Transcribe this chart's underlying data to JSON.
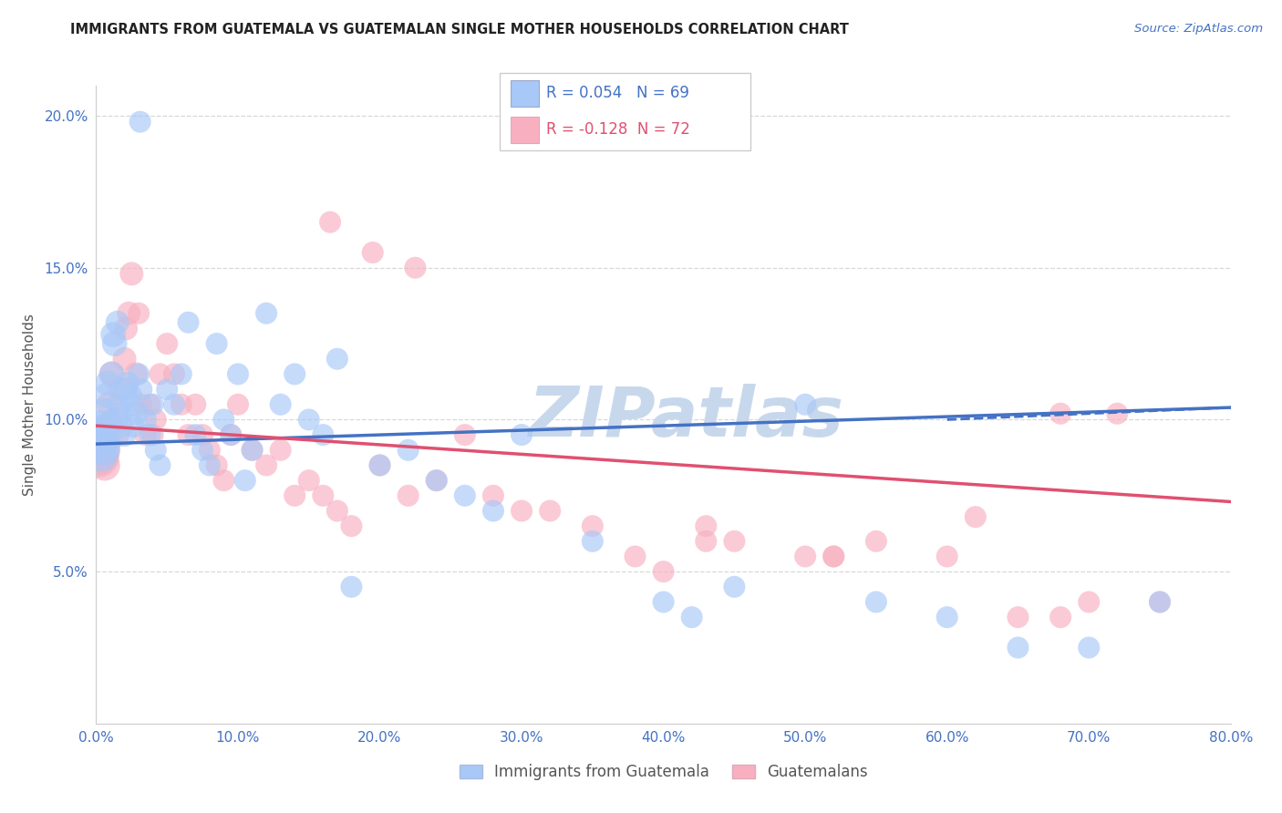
{
  "title": "IMMIGRANTS FROM GUATEMALA VS GUATEMALAN SINGLE MOTHER HOUSEHOLDS CORRELATION CHART",
  "source": "Source: ZipAtlas.com",
  "ylabel": "Single Mother Households",
  "series1_label": "Immigrants from Guatemala",
  "series2_label": "Guatemalans",
  "series1_R": "0.054",
  "series1_N": 69,
  "series2_R": "-0.128",
  "series2_N": 72,
  "series1_color": "#a8c8f8",
  "series2_color": "#f8b0c0",
  "series1_line_color": "#4472c4",
  "series2_line_color": "#e05070",
  "background_color": "#ffffff",
  "grid_color": "#d8d8d8",
  "title_color": "#222222",
  "axis_label_color": "#4472c4",
  "tick_color": "#4472c4",
  "xlim": [
    0,
    80
  ],
  "ylim": [
    0,
    21
  ],
  "yticks": [
    5,
    10,
    15,
    20
  ],
  "xticks": [
    0,
    10,
    20,
    30,
    40,
    50,
    60,
    70,
    80
  ],
  "watermark": "ZIPatlas",
  "watermark_color": "#c8d8ec",
  "watermark_fontsize": 55,
  "series1_x": [
    0.15,
    0.25,
    0.3,
    0.4,
    0.5,
    0.55,
    0.6,
    0.7,
    0.8,
    0.9,
    1.0,
    1.1,
    1.2,
    1.3,
    1.5,
    1.6,
    1.7,
    1.8,
    2.0,
    2.1,
    2.2,
    2.4,
    2.5,
    2.6,
    2.8,
    3.0,
    3.1,
    3.2,
    3.5,
    3.8,
    4.0,
    4.2,
    4.5,
    5.0,
    5.5,
    6.0,
    6.5,
    7.0,
    7.5,
    8.0,
    8.5,
    9.0,
    9.5,
    10.0,
    10.5,
    11.0,
    12.0,
    13.0,
    14.0,
    15.0,
    16.0,
    17.0,
    18.0,
    20.0,
    22.0,
    24.0,
    26.0,
    28.0,
    30.0,
    35.0,
    40.0,
    42.0,
    45.0,
    50.0,
    55.0,
    60.0,
    65.0,
    70.0,
    75.0
  ],
  "series1_y": [
    9.2,
    9.5,
    9.8,
    8.8,
    10.2,
    9.5,
    9.0,
    10.8,
    11.2,
    9.3,
    9.9,
    11.5,
    12.8,
    12.5,
    13.2,
    10.5,
    10.2,
    9.8,
    9.5,
    11.0,
    11.2,
    10.8,
    10.5,
    9.8,
    10.2,
    11.5,
    19.8,
    11.0,
    10.0,
    9.5,
    10.5,
    9.0,
    8.5,
    11.0,
    10.5,
    11.5,
    13.2,
    9.5,
    9.0,
    8.5,
    12.5,
    10.0,
    9.5,
    11.5,
    8.0,
    9.0,
    13.5,
    10.5,
    11.5,
    10.0,
    9.5,
    12.0,
    4.5,
    8.5,
    9.0,
    8.0,
    7.5,
    7.0,
    9.5,
    6.0,
    4.0,
    3.5,
    4.5,
    10.5,
    4.0,
    3.5,
    2.5,
    2.5,
    4.0
  ],
  "series2_x": [
    0.15,
    0.25,
    0.35,
    0.5,
    0.6,
    0.7,
    0.8,
    0.9,
    1.0,
    1.1,
    1.3,
    1.5,
    1.7,
    2.0,
    2.1,
    2.3,
    2.5,
    2.8,
    3.0,
    3.2,
    3.5,
    3.8,
    4.0,
    4.2,
    4.5,
    5.0,
    5.5,
    6.0,
    6.5,
    7.0,
    7.5,
    8.0,
    8.5,
    9.0,
    9.5,
    10.0,
    11.0,
    12.0,
    13.0,
    14.0,
    15.0,
    16.0,
    17.0,
    18.0,
    20.0,
    22.0,
    24.0,
    26.0,
    28.0,
    30.0,
    35.0,
    38.0,
    40.0,
    43.0,
    45.0,
    50.0,
    52.0,
    55.0,
    60.0,
    62.0,
    65.0,
    68.0,
    70.0,
    72.0,
    75.0,
    16.5,
    19.5,
    22.5,
    32.0,
    43.0,
    52.0,
    68.0
  ],
  "series2_y": [
    9.0,
    8.8,
    9.2,
    9.5,
    8.5,
    9.8,
    9.0,
    10.5,
    9.8,
    11.5,
    10.0,
    9.5,
    11.0,
    12.0,
    13.0,
    13.5,
    14.8,
    11.5,
    13.5,
    10.5,
    9.5,
    10.5,
    9.5,
    10.0,
    11.5,
    12.5,
    11.5,
    10.5,
    9.5,
    10.5,
    9.5,
    9.0,
    8.5,
    8.0,
    9.5,
    10.5,
    9.0,
    8.5,
    9.0,
    7.5,
    8.0,
    7.5,
    7.0,
    6.5,
    8.5,
    7.5,
    8.0,
    9.5,
    7.5,
    7.0,
    6.5,
    5.5,
    5.0,
    6.5,
    6.0,
    5.5,
    5.5,
    6.0,
    5.5,
    6.8,
    3.5,
    3.5,
    4.0,
    10.2,
    4.0,
    16.5,
    15.5,
    15.0,
    7.0,
    6.0,
    5.5,
    10.2
  ],
  "big_cluster_pink_x": 0.1,
  "big_cluster_pink_y": 8.8,
  "big_cluster_pink_size": 1200,
  "reg1_x0": 0,
  "reg1_x1": 80,
  "reg1_y0": 9.2,
  "reg1_y1": 10.4,
  "reg2_x0": 0,
  "reg2_x1": 80,
  "reg2_y0": 9.8,
  "reg2_y1": 7.3,
  "reg1_dash_x0": 60,
  "reg1_dash_x1": 80,
  "reg1_dash_y0": 10.0,
  "reg1_dash_y1": 10.4
}
